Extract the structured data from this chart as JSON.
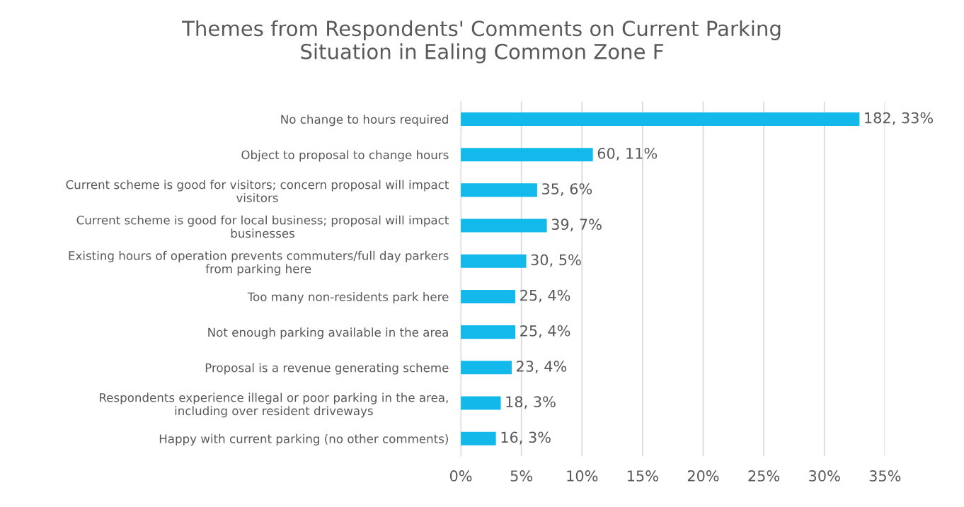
{
  "chart_data": {
    "type": "bar",
    "orientation": "horizontal",
    "title": "Themes from Respondents' Comments on Current Parking\nSituation in Ealing Common Zone F",
    "categories": [
      "No change to hours required",
      "Object to proposal to change hours",
      "Current scheme is good for visitors; concern proposal will impact\nvisitors",
      "Current scheme is good for local business; proposal will impact\nbusinesses",
      "Existing hours of operation prevents commuters/full day parkers\nfrom parking here",
      "Too many non-residents park here",
      "Not enough parking available in the area",
      "Proposal is a revenue generating scheme",
      "Respondents experience illegal or poor parking in the area,\nincluding over resident driveways",
      "Happy with current parking (no other comments)"
    ],
    "values": [
      32.9,
      10.9,
      6.3,
      7.1,
      5.4,
      4.5,
      4.5,
      4.2,
      3.3,
      2.9
    ],
    "value_labels": [
      "182, 33%",
      "60, 11%",
      "35, 6%",
      "39, 7%",
      "30, 5%",
      "25, 4%",
      "25, 4%",
      "23, 4%",
      "18, 3%",
      "16, 3%"
    ],
    "color": "#12b9ea",
    "xlim": [
      0,
      35
    ],
    "xticks": [
      {
        "value": 0,
        "label": "0%"
      },
      {
        "value": 5,
        "label": "5%"
      },
      {
        "value": 10,
        "label": "10%"
      },
      {
        "value": 15,
        "label": "15%"
      },
      {
        "value": 20,
        "label": "20%"
      },
      {
        "value": 25,
        "label": "25%"
      },
      {
        "value": 30,
        "label": "30%"
      },
      {
        "value": 35,
        "label": "35%"
      }
    ],
    "grid": "x",
    "legend": false
  }
}
